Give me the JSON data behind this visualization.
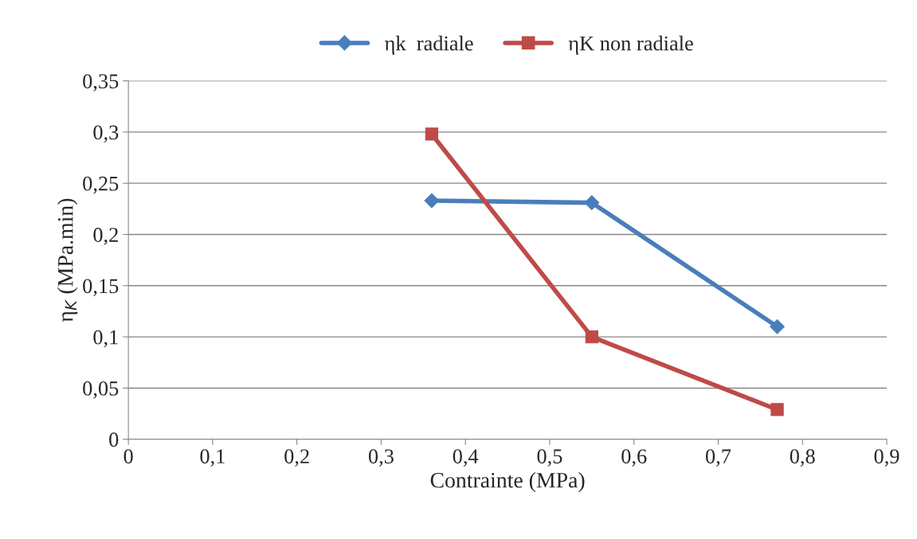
{
  "chart_data": {
    "type": "line",
    "xlabel": "Contrainte (MPa)",
    "ylabel": "η$_{K}$ (MPa.min)",
    "xlim": [
      0,
      0.9
    ],
    "xticks": [
      {
        "value": 0,
        "label": "0"
      },
      {
        "value": 0.1,
        "label": "0,1"
      },
      {
        "value": 0.2,
        "label": "0,2"
      },
      {
        "value": 0.3,
        "label": "0,3"
      },
      {
        "value": 0.4,
        "label": "0,4"
      },
      {
        "value": 0.5,
        "label": "0,5"
      },
      {
        "value": 0.6,
        "label": "0,6"
      },
      {
        "value": 0.7,
        "label": "0,7"
      },
      {
        "value": 0.8,
        "label": "0,8"
      },
      {
        "value": 0.9,
        "label": "0,9"
      }
    ],
    "ylim": [
      0,
      0.35
    ],
    "yticks": [
      {
        "value": 0,
        "label": "0"
      },
      {
        "value": 0.05,
        "label": "0,05"
      },
      {
        "value": 0.1,
        "label": "0,1"
      },
      {
        "value": 0.15,
        "label": "0,15"
      },
      {
        "value": 0.2,
        "label": "0,2"
      },
      {
        "value": 0.25,
        "label": "0,25"
      },
      {
        "value": 0.3,
        "label": "0,3"
      },
      {
        "value": 0.35,
        "label": "0,35"
      }
    ],
    "grid": "y",
    "legend": "top",
    "line_style": "solid",
    "series": [
      {
        "name": "ηk  radiale",
        "color": "#4a7ebb",
        "marker": "diamond",
        "x": [
          0.36,
          0.55,
          0.77
        ],
        "values": [
          0.233,
          0.231,
          0.11
        ]
      },
      {
        "name": "ηK non radiale",
        "color": "#be4b48",
        "marker": "square",
        "x": [
          0.36,
          0.55,
          0.77
        ],
        "values": [
          0.298,
          0.1,
          0.029
        ]
      }
    ]
  }
}
